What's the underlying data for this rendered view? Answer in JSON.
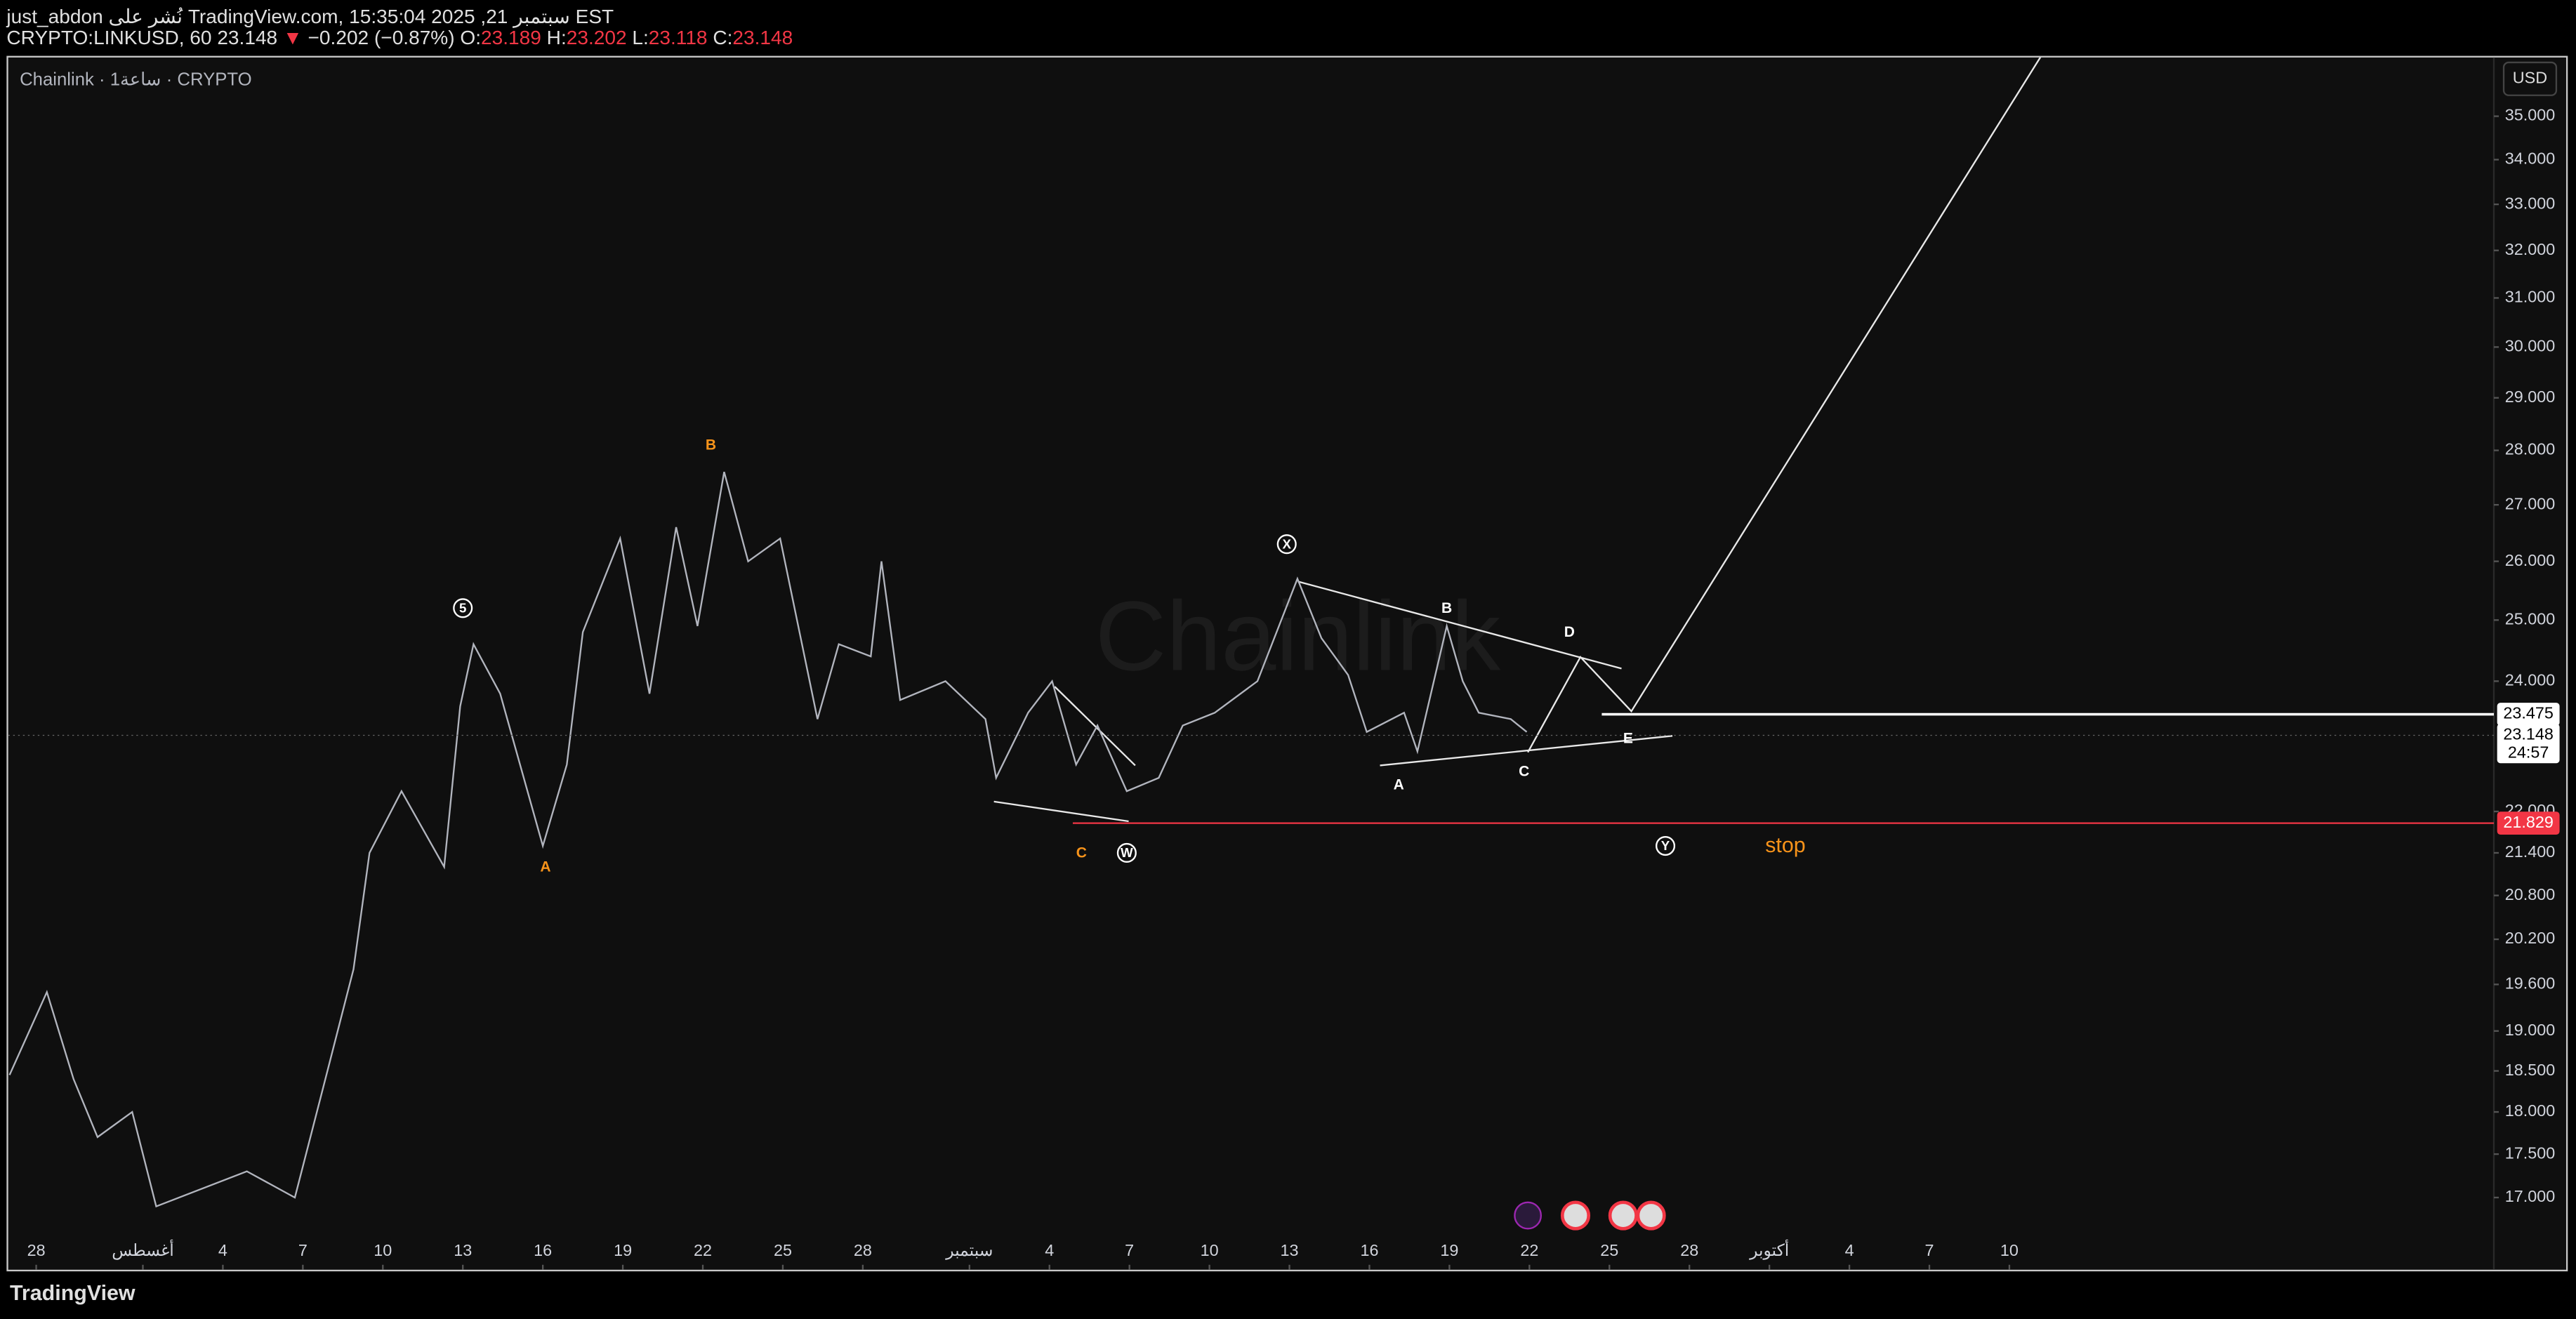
{
  "header": {
    "line1": "just_abdon نُشر على TradingView.com, سبتمبر 21, 2025 15:35:04 EST",
    "quote": {
      "symbol": "CRYPTO:LINKUSD, 60",
      "last": "23.148",
      "arrow": "▼",
      "change": "−0.202 (−0.87%)",
      "fields": [
        {
          "label": "O:",
          "value": "23.189"
        },
        {
          "label": "H:",
          "value": "23.202"
        },
        {
          "label": "L:",
          "value": "23.118"
        },
        {
          "label": "C:",
          "value": "23.148"
        }
      ]
    },
    "legend": "Chainlink · 1ساعة · CRYPTO",
    "watermark": "Chainlink",
    "currency": "USD",
    "footer": "TradingView"
  },
  "chart_data": {
    "type": "line",
    "log_scale": true,
    "grid": false,
    "x": [
      -1.0,
      0.4,
      1.4,
      2.3,
      3.6,
      4.5,
      7.9,
      9.7,
      11.0,
      11.9,
      12.5,
      13.7,
      15.3,
      15.9,
      16.4,
      17.4,
      19.0,
      19.9,
      20.5,
      21.9,
      23.0,
      24.0,
      24.8,
      25.8,
      26.7,
      27.9,
      29.3,
      30.1,
      31.3,
      31.7,
      32.4,
      34.1,
      35.6,
      36.0,
      37.2,
      38.1,
      39.0,
      39.8,
      40.9,
      42.1,
      43.0,
      44.2,
      45.8,
      47.3,
      48.2,
      49.2,
      49.9,
      51.3,
      51.8,
      52.9,
      53.5,
      54.1,
      55.3,
      55.9
    ],
    "series": [
      {
        "name": "CRYPTO:LINKUSD",
        "color": "#b2b5be",
        "values": [
          18.45,
          19.5,
          18.4,
          17.7,
          18.0,
          16.9,
          17.3,
          17.0,
          18.6,
          19.8,
          21.4,
          22.3,
          21.2,
          23.6,
          24.6,
          23.8,
          21.5,
          22.7,
          24.8,
          26.4,
          23.8,
          26.6,
          24.9,
          27.6,
          26.0,
          26.4,
          23.4,
          24.6,
          24.4,
          26.0,
          23.7,
          24.0,
          23.4,
          22.5,
          23.5,
          24.0,
          22.7,
          23.3,
          22.3,
          22.5,
          23.3,
          23.5,
          24.0,
          25.7,
          24.7,
          24.1,
          23.2,
          23.5,
          22.9,
          24.9,
          24.0,
          23.5,
          23.4,
          23.2
        ]
      }
    ],
    "xlim": [
      -1.05,
      92.17
    ],
    "ylim": [
      16.2,
      36.4
    ],
    "xticks": [
      {
        "value": 0,
        "label": "28"
      },
      {
        "value": 4,
        "label": "أغسطس"
      },
      {
        "value": 7,
        "label": "4"
      },
      {
        "value": 10,
        "label": "7"
      },
      {
        "value": 13,
        "label": "10"
      },
      {
        "value": 16,
        "label": "13"
      },
      {
        "value": 19,
        "label": "16"
      },
      {
        "value": 22,
        "label": "19"
      },
      {
        "value": 25,
        "label": "22"
      },
      {
        "value": 28,
        "label": "25"
      },
      {
        "value": 31,
        "label": "28"
      },
      {
        "value": 35,
        "label": "سبتمبر"
      },
      {
        "value": 38,
        "label": "4"
      },
      {
        "value": 41,
        "label": "7"
      },
      {
        "value": 44,
        "label": "10"
      },
      {
        "value": 47,
        "label": "13"
      },
      {
        "value": 50,
        "label": "16"
      },
      {
        "value": 53,
        "label": "19"
      },
      {
        "value": 56,
        "label": "22"
      },
      {
        "value": 59,
        "label": "25"
      },
      {
        "value": 62,
        "label": "28"
      },
      {
        "value": 65,
        "label": "أكتوبر"
      },
      {
        "value": 68,
        "label": "4"
      },
      {
        "value": 71,
        "label": "7"
      },
      {
        "value": 74,
        "label": "10"
      }
    ],
    "yticks": [
      {
        "value": 35,
        "label": "35.000"
      },
      {
        "value": 34,
        "label": "34.000"
      },
      {
        "value": 33,
        "label": "33.000"
      },
      {
        "value": 32,
        "label": "32.000"
      },
      {
        "value": 31,
        "label": "31.000"
      },
      {
        "value": 30,
        "label": "30.000"
      },
      {
        "value": 29,
        "label": "29.000"
      },
      {
        "value": 28,
        "label": "28.000"
      },
      {
        "value": 27,
        "label": "27.000"
      },
      {
        "value": 26,
        "label": "26.000"
      },
      {
        "value": 25,
        "label": "25.000"
      },
      {
        "value": 24,
        "label": "24.000"
      },
      {
        "value": 22,
        "label": "22.000"
      },
      {
        "value": 21.4,
        "label": "21.400"
      },
      {
        "value": 20.8,
        "label": "20.800"
      },
      {
        "value": 20.2,
        "label": "20.200"
      },
      {
        "value": 19.6,
        "label": "19.600"
      },
      {
        "value": 19,
        "label": "19.000"
      },
      {
        "value": 18.5,
        "label": "18.500"
      },
      {
        "value": 18,
        "label": "18.000"
      },
      {
        "value": 17.5,
        "label": "17.500"
      },
      {
        "value": 17,
        "label": "17.000"
      }
    ],
    "price_lines": [
      {
        "value": 23.475,
        "label": "23.475",
        "color": "#ffffff"
      },
      {
        "value": 21.829,
        "label": "21.829",
        "color": "#f23645"
      }
    ],
    "current": {
      "value": 23.148,
      "label": "23.148",
      "countdown": "24:57"
    },
    "annotations": [
      {
        "text": "B",
        "x": 25.3,
        "y": 28.1,
        "color": "#f7931a",
        "circled": false
      },
      {
        "text": "5",
        "x": 16.0,
        "y": 25.2,
        "color": "#ffffff",
        "circled": true
      },
      {
        "text": "A",
        "x": 19.1,
        "y": 21.2,
        "color": "#f7931a",
        "circled": false
      },
      {
        "text": "C",
        "x": 39.2,
        "y": 21.4,
        "color": "#f7931a",
        "circled": false
      },
      {
        "text": "W",
        "x": 40.9,
        "y": 21.4,
        "color": "#ffffff",
        "circled": true
      },
      {
        "text": "X",
        "x": 46.9,
        "y": 26.3,
        "color": "#ffffff",
        "circled": true
      },
      {
        "text": "B",
        "x": 52.9,
        "y": 25.2,
        "color": "#ffffff",
        "circled": false
      },
      {
        "text": "D",
        "x": 57.5,
        "y": 24.8,
        "color": "#ffffff",
        "circled": false
      },
      {
        "text": "A",
        "x": 51.1,
        "y": 22.4,
        "color": "#ffffff",
        "circled": false
      },
      {
        "text": "C",
        "x": 55.8,
        "y": 22.6,
        "color": "#ffffff",
        "circled": false
      },
      {
        "text": "E",
        "x": 59.7,
        "y": 23.1,
        "color": "#ffffff",
        "circled": false
      },
      {
        "text": "Y",
        "x": 61.1,
        "y": 21.5,
        "color": "#ffffff",
        "circled": true
      },
      {
        "text": "stop",
        "x": 65.6,
        "y": 21.5,
        "color": "#f7931a",
        "circled": false,
        "large": true
      }
    ]
  }
}
